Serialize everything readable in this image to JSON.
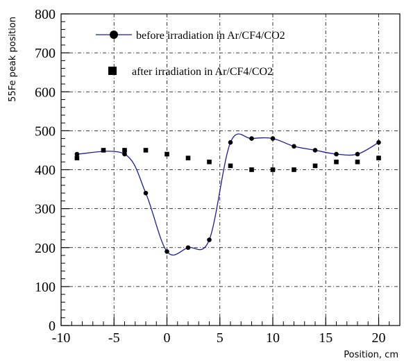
{
  "chart_data": {
    "type": "scatter",
    "xlabel": "Position, cm",
    "ylabel": "55Fe peak position",
    "xlim": [
      -10,
      22
    ],
    "ylim": [
      0,
      800
    ],
    "x_ticks": [
      -10,
      -5,
      0,
      5,
      10,
      15,
      20
    ],
    "y_ticks": [
      0,
      100,
      200,
      300,
      400,
      500,
      600,
      700,
      800
    ],
    "grid": true,
    "legend_position": "top",
    "series": [
      {
        "name": "before irradiation in Ar/CF4/CO2",
        "marker": "circle",
        "line": "smooth",
        "color": "#1a1aa6",
        "x": [
          -8.5,
          -4,
          -2,
          0,
          2,
          4,
          6,
          8,
          10,
          12,
          14,
          16,
          18,
          20
        ],
        "y": [
          440,
          440,
          340,
          190,
          200,
          220,
          470,
          480,
          480,
          460,
          450,
          440,
          440,
          470
        ]
      },
      {
        "name": "after irradiation in Ar/CF4/CO2",
        "marker": "square",
        "line": "none",
        "color": "#000000",
        "x": [
          -8.5,
          -6,
          -4,
          -2,
          0,
          2,
          4,
          6,
          8,
          10,
          12,
          14,
          16,
          18,
          20
        ],
        "y": [
          430,
          450,
          450,
          450,
          440,
          430,
          420,
          410,
          400,
          400,
          400,
          410,
          420,
          420,
          430
        ]
      }
    ]
  }
}
